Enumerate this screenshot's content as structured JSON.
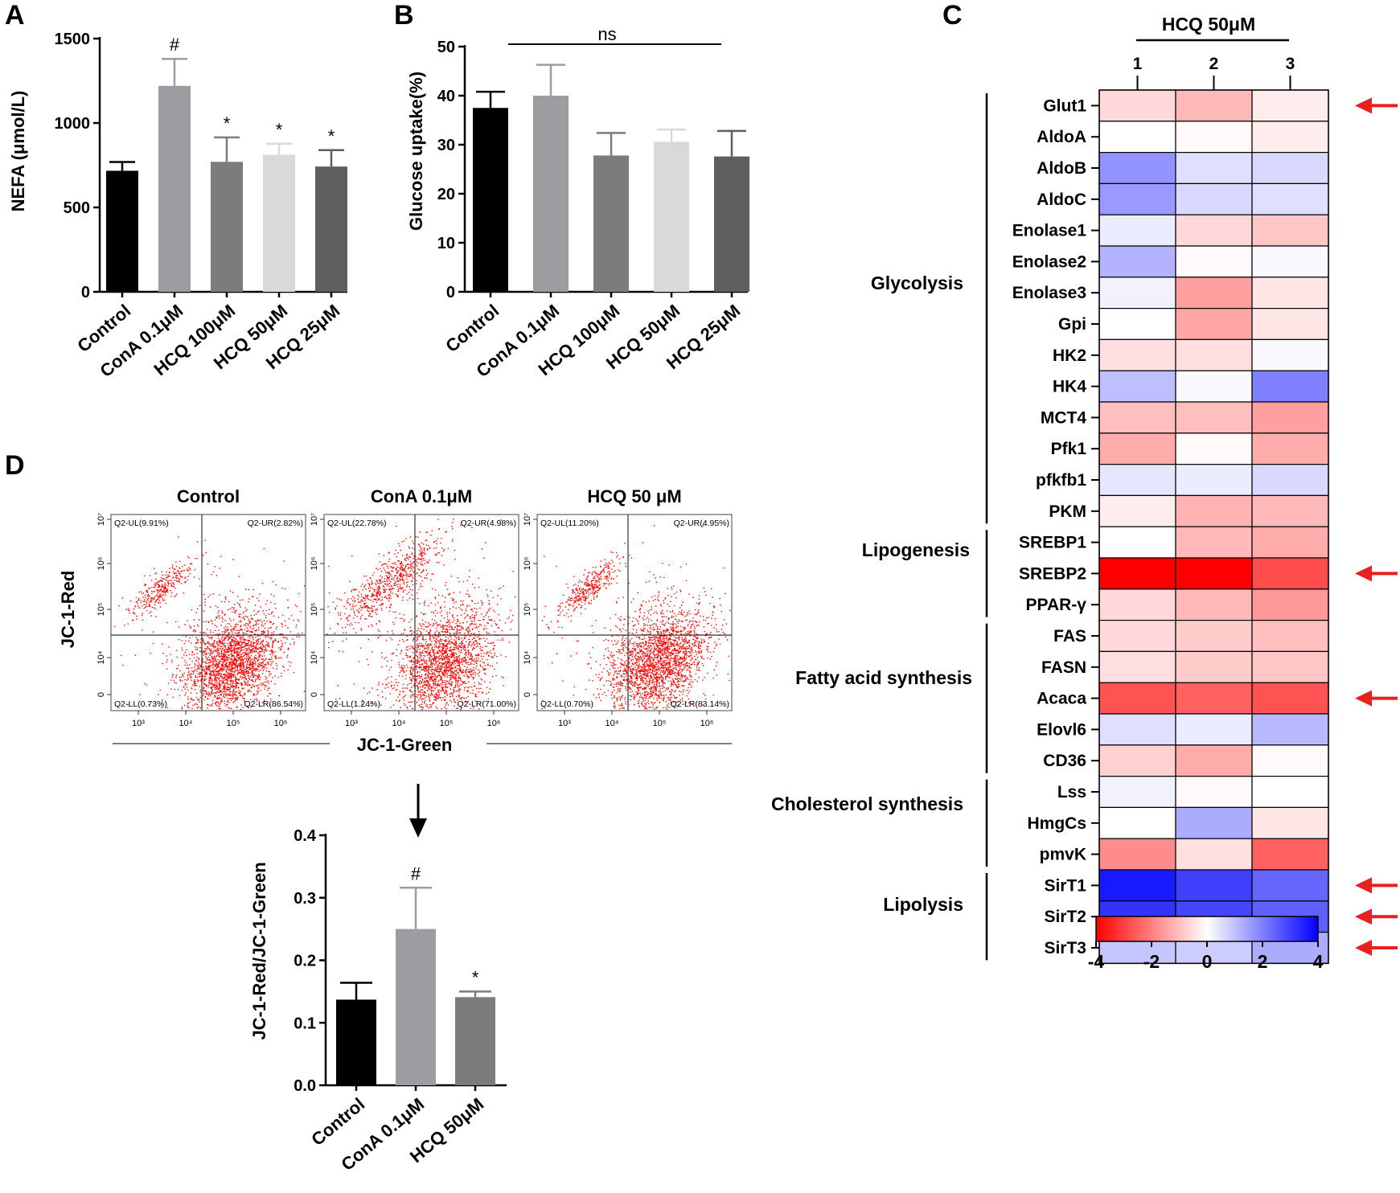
{
  "colors": {
    "black": "#000000",
    "red": "#ff0000",
    "blue": "#0000ff",
    "bar_palette": [
      "#000000",
      "#9d9da1",
      "#7c7c7c",
      "#d9d9d9",
      "#5e5e5e"
    ],
    "arrow": "#e8201f"
  },
  "panels": {
    "a": "A",
    "b": "B",
    "c": "C",
    "d": "D"
  },
  "chart_data": [
    {
      "id": "A",
      "type": "bar",
      "ylabel": "NEFA (μmol/L)",
      "categories": [
        "Control",
        "ConA 0.1μM",
        "HCQ 100μM",
        "HCQ 50μM",
        "HCQ 25μM"
      ],
      "values": [
        717,
        1220,
        770,
        812,
        742
      ],
      "errors": [
        52,
        160,
        145,
        65,
        97
      ],
      "significance": [
        "",
        "#",
        "*",
        "*",
        "*"
      ],
      "ylim": [
        0,
        1500
      ],
      "yticks": [
        0,
        500,
        1000,
        1500
      ]
    },
    {
      "id": "B",
      "type": "bar",
      "ylabel": "Glucose uptake(%)",
      "categories": [
        "Control",
        "ConA 0.1μM",
        "HCQ 100μM",
        "HCQ 50μM",
        "HCQ 25μM"
      ],
      "values": [
        37.5,
        40,
        27.8,
        30.6,
        27.6
      ],
      "errors": [
        3.3,
        6.3,
        4.6,
        2.5,
        5.2
      ],
      "bracket_label": "ns",
      "ylim": [
        0,
        50
      ],
      "yticks": [
        0,
        10,
        20,
        30,
        40,
        50
      ]
    },
    {
      "id": "C",
      "type": "heatmap",
      "title": "HCQ 50μM",
      "columns": [
        "1",
        "2",
        "3"
      ],
      "rows": [
        "Glut1",
        "AldoA",
        "AldoB",
        "AldoC",
        "Enolase1",
        "Enolase2",
        "Enolase3",
        "Gpi",
        "HK2",
        "HK4",
        "MCT4",
        "Pfk1",
        "pfkfb1",
        "PKM",
        "SREBP1",
        "SREBP2",
        "PPAR-γ",
        "FAS",
        "FASN",
        "Acaca",
        "Elovl6",
        "CD36",
        "Lss",
        "HmgCs",
        "pmvK",
        "SirT1",
        "SirT2",
        "SirT3"
      ],
      "values": [
        [
          -0.6,
          -1.1,
          -0.3
        ],
        [
          0.0,
          -0.1,
          -0.3
        ],
        [
          1.7,
          0.5,
          0.6
        ],
        [
          1.6,
          0.6,
          0.5
        ],
        [
          0.3,
          -0.6,
          -0.9
        ],
        [
          1.2,
          -0.1,
          0.1
        ],
        [
          0.2,
          -1.5,
          -0.4
        ],
        [
          0.0,
          -1.4,
          -0.4
        ],
        [
          -0.5,
          -0.5,
          0.1
        ],
        [
          1.0,
          0.1,
          2.0
        ],
        [
          -1.0,
          -1.0,
          -1.5
        ],
        [
          -1.3,
          -0.1,
          -1.3
        ],
        [
          0.4,
          0.3,
          0.6
        ],
        [
          -0.3,
          -1.2,
          -1.1
        ],
        [
          0.0,
          -1.1,
          -1.3
        ],
        [
          -4.0,
          -4.0,
          -2.8
        ],
        [
          -0.6,
          -1.1,
          -1.6
        ],
        [
          -0.6,
          -0.8,
          -1.0
        ],
        [
          -0.5,
          -0.8,
          -0.9
        ],
        [
          -2.7,
          -2.5,
          -2.7
        ],
        [
          0.5,
          0.3,
          1.1
        ],
        [
          -0.7,
          -1.3,
          -0.1
        ],
        [
          0.2,
          -0.1,
          0.0
        ],
        [
          0.0,
          1.3,
          -0.4
        ],
        [
          -1.8,
          -0.5,
          -2.5
        ],
        [
          3.6,
          3.0,
          2.4
        ],
        [
          3.2,
          2.9,
          2.5
        ],
        [
          0.9,
          0.8,
          1.3
        ]
      ],
      "groups": [
        {
          "label": "Glycolysis",
          "from": 0,
          "to": 13
        },
        {
          "label": "Lipogenesis",
          "from": 14,
          "to": 16
        },
        {
          "label": "Fatty acid synthesis",
          "from": 17,
          "to": 21
        },
        {
          "label": "Cholesterol synthesis",
          "from": 22,
          "to": 24
        },
        {
          "label": "Lipolysis",
          "from": 25,
          "to": 27
        }
      ],
      "arrow_rows": [
        0,
        15,
        19,
        25,
        26,
        27
      ],
      "colorbar": {
        "min": -4,
        "max": 4,
        "ticks": [
          "-4",
          "-2",
          "0",
          "2",
          "4"
        ]
      }
    },
    {
      "id": "D-flow",
      "type": "scatter",
      "xlabel": "JC-1-Green",
      "ylabel": "JC-1-Red",
      "x_ticks": [
        "10³",
        "10⁴",
        "10⁵",
        "10⁶"
      ],
      "y_ticks": [
        "10⁷",
        "10⁶",
        "10⁵",
        "10⁴",
        "0"
      ],
      "plots": [
        {
          "title": "Control",
          "UL": "Q2-UL(9.91%)",
          "UR": "Q2-UR(2.82%)",
          "LL": "Q2-LL(0.73%)",
          "LR": "Q2-LR(86.54%)"
        },
        {
          "title": "ConA 0.1μM",
          "UL": "Q2-UL(22.78%)",
          "UR": "Q2-UR(4.98%)",
          "LL": "Q2-LL(1.24%)",
          "LR": "Q2-LR(71.00%)"
        },
        {
          "title": "HCQ 50 μM",
          "UL": "Q2-UL(11.20%)",
          "UR": "Q2-UR(4.95%)",
          "LL": "Q2-LL(0.70%)",
          "LR": "Q2-LR(83.14%)"
        }
      ]
    },
    {
      "id": "D-bar",
      "type": "bar",
      "ylabel": "JC-1-Red/JC-1-Green",
      "categories": [
        "Control",
        "ConA 0.1μM",
        "HCQ 50μM"
      ],
      "values": [
        0.137,
        0.25,
        0.141
      ],
      "errors": [
        0.027,
        0.066,
        0.009
      ],
      "significance": [
        "",
        "#",
        "*"
      ],
      "ylim": [
        0,
        0.4
      ],
      "yticks": [
        "0.0",
        "0.1",
        "0.2",
        "0.3",
        "0.4"
      ]
    }
  ]
}
